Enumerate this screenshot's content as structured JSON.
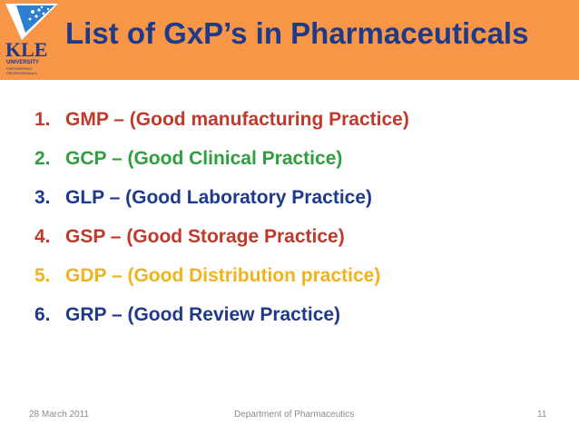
{
  "header": {
    "title": "List of GxP’s in Pharmaceuticals",
    "background": "#f79646",
    "title_color": "#1f3a8a"
  },
  "logo": {
    "name": "KLE",
    "line1": "UNIVERSITY",
    "line2": "EMPOWERING PROFESSIONALS",
    "icon": "kle-university-logo"
  },
  "list": {
    "items": [
      {
        "number": "1.",
        "text": "GMP – (Good manufacturing Practice)",
        "color": "#c0392b"
      },
      {
        "number": "2.",
        "text": "GCP –  (Good Clinical Practice)",
        "color": "#2e9e3f"
      },
      {
        "number": "3.",
        "text": "GLP – (Good Laboratory Practice)",
        "color": "#1f3a8a"
      },
      {
        "number": "4.",
        "text": "GSP – (Good Storage Practice)",
        "color": "#c0392b"
      },
      {
        "number": "5.",
        "text": "GDP – (Good Distribution practice)",
        "color": "#f2b21b"
      },
      {
        "number": "6.",
        "text": "GRP – (Good Review Practice)",
        "color": "#1f3a8a"
      }
    ]
  },
  "footer": {
    "date": "28 March 2011",
    "department": "Department of Pharmaceutics",
    "page": "11"
  }
}
